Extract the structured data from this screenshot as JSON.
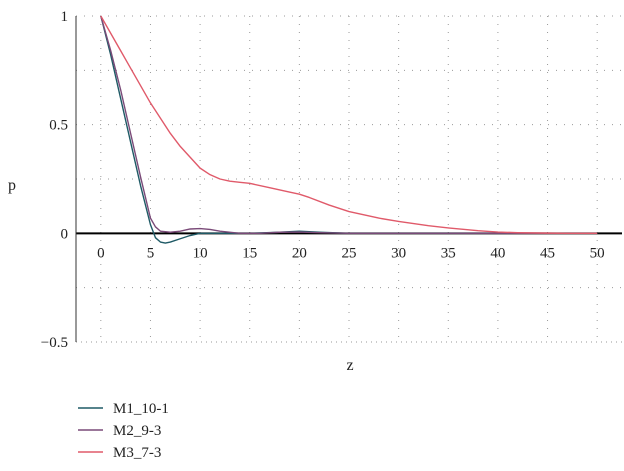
{
  "chart_data": {
    "type": "line",
    "title": "",
    "xlabel": "z",
    "ylabel": "p",
    "xlim": [
      -2.5,
      52.5
    ],
    "ylim": [
      -0.5,
      1
    ],
    "x_ticks": [
      0,
      5,
      10,
      15,
      20,
      25,
      30,
      35,
      40,
      45,
      50
    ],
    "y_ticks": [
      -0.5,
      0,
      0.5,
      1
    ],
    "y_tick_labels": [
      "−0.5",
      "0",
      "0.5",
      "1"
    ],
    "grid": true,
    "legend_position": "bottom-left",
    "series": [
      {
        "name": "M1_10-1",
        "color": "#1f5a66",
        "x": [
          0,
          1,
          2,
          3,
          4,
          5,
          5.5,
          6,
          6.5,
          7,
          8,
          9,
          10,
          11,
          12,
          15,
          18,
          20,
          22,
          25,
          30,
          35,
          40,
          45,
          50
        ],
        "y": [
          1,
          0.82,
          0.62,
          0.42,
          0.22,
          0.04,
          -0.02,
          -0.04,
          -0.045,
          -0.04,
          -0.025,
          -0.01,
          0,
          0,
          0,
          0,
          0.005,
          0.01,
          0.005,
          0,
          0,
          0,
          0,
          0,
          0
        ]
      },
      {
        "name": "M2_9-3",
        "color": "#7a4a78",
        "x": [
          0,
          1,
          2,
          3,
          4,
          5,
          5.5,
          6,
          7,
          8,
          9,
          10,
          11,
          12,
          14,
          16,
          18,
          20,
          22,
          25,
          30,
          35,
          40,
          45,
          50
        ],
        "y": [
          1,
          0.84,
          0.66,
          0.46,
          0.26,
          0.07,
          0.03,
          0.01,
          0.005,
          0.01,
          0.02,
          0.022,
          0.018,
          0.01,
          0,
          0,
          0.005,
          0.006,
          0.003,
          0,
          0,
          0,
          0,
          0,
          0
        ]
      },
      {
        "name": "M3_7-3",
        "color": "#e05a6a",
        "x": [
          0,
          1,
          2,
          3,
          4,
          5,
          6,
          7,
          8,
          9,
          10,
          11,
          12,
          13,
          14,
          15,
          17,
          19,
          20,
          21,
          23,
          25,
          28,
          30,
          33,
          35,
          38,
          40,
          42,
          45,
          47,
          50
        ],
        "y": [
          1,
          0.92,
          0.84,
          0.76,
          0.68,
          0.6,
          0.53,
          0.46,
          0.4,
          0.35,
          0.3,
          0.27,
          0.25,
          0.24,
          0.235,
          0.23,
          0.21,
          0.19,
          0.18,
          0.165,
          0.13,
          0.1,
          0.07,
          0.055,
          0.035,
          0.025,
          0.012,
          0.006,
          0.003,
          0.001,
          0,
          0
        ]
      }
    ]
  }
}
